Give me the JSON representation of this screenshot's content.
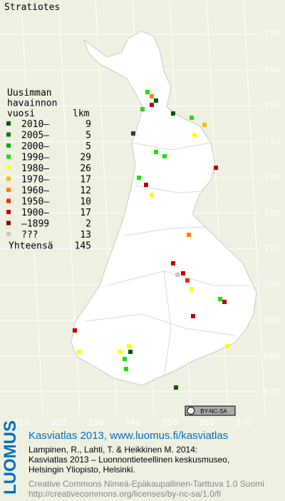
{
  "map": {
    "title": "Stratiotes",
    "y_labels": [
      770,
      760,
      750,
      740,
      730,
      720,
      710,
      700,
      690,
      680,
      670
    ],
    "x_labels": [
      310,
      320,
      330,
      340,
      350,
      360,
      370
    ],
    "legend": {
      "heading": [
        "Uusimman",
        "havainnon",
        "vuosi"
      ],
      "count_heading": "lkm",
      "items": [
        {
          "label": "2010–",
          "count": 9,
          "color": "#005a00"
        },
        {
          "label": "2005–",
          "count": 5,
          "color": "#007a00"
        },
        {
          "label": "2000–",
          "count": 5,
          "color": "#00b000"
        },
        {
          "label": "1990–",
          "count": 29,
          "color": "#22e000"
        },
        {
          "label": "1980–",
          "count": 26,
          "color": "#ffff00"
        },
        {
          "label": "1970–",
          "count": 17,
          "color": "#f0c000"
        },
        {
          "label": "1960–",
          "count": 12,
          "color": "#ff8000"
        },
        {
          "label": "1950–",
          "count": 10,
          "color": "#e03000"
        },
        {
          "label": "1900–",
          "count": 17,
          "color": "#c00000"
        },
        {
          "label": "–1899",
          "count": 2,
          "color": "#8a0000"
        },
        {
          "label": "???",
          "count": 13,
          "color": "#c8c8c8"
        }
      ],
      "total_label": "Yhteensä",
      "total": 145
    },
    "badge": "BY-NC-SA"
  },
  "footer": {
    "logo": "LUOMUS",
    "link": "Kasviatlas 2013, www.luomus.fi/kasviatlas",
    "citation": [
      "Lampinen, R., Lahti, T. & Heikkinen M. 2014:",
      "Kasviatlas 2013 – Luonnontieteellinen keskusmuseo,",
      "Helsingin Yliopisto, Helsinki."
    ],
    "license": [
      "Creative Commons Nimeä-Epäkaupallinen-Tarttuva 1.0 Suomi",
      "http://creativecommons.org/licenses/by-nc-sa/1.0/fi"
    ]
  }
}
